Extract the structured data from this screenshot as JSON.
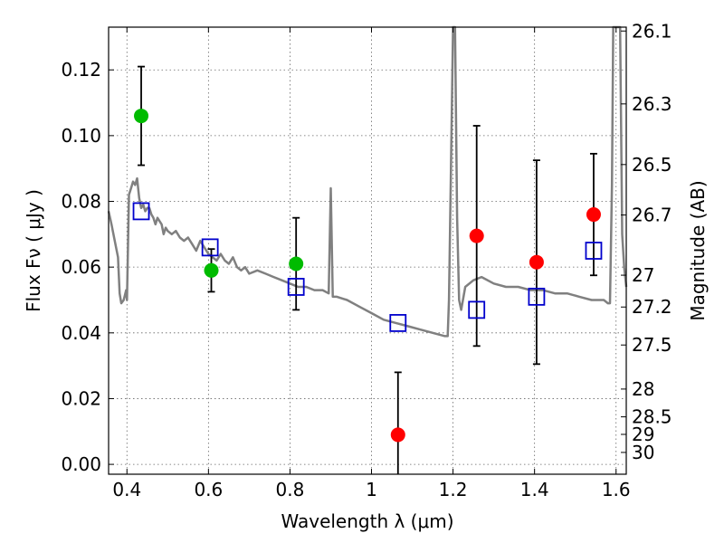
{
  "chart_data": {
    "type": "scatter",
    "xlabel": "Wavelength  λ (μm)",
    "ylabel": "Flux  Fν  ( μJy )",
    "y2label": "Magnitude (AB)",
    "xlim": [
      0.355,
      1.625
    ],
    "ylim": [
      -0.003,
      0.133
    ],
    "grid": true,
    "x_ticks": [
      0.4,
      0.6,
      0.8,
      1.0,
      1.2,
      1.4,
      1.6
    ],
    "x_tick_labels": [
      "0.4",
      "0.6",
      "0.8",
      "1",
      "1.2",
      "1.4",
      "1.6"
    ],
    "y_ticks": [
      0.0,
      0.02,
      0.04,
      0.06,
      0.08,
      0.1,
      0.12
    ],
    "y_tick_labels": [
      "0.00",
      "0.02",
      "0.04",
      "0.06",
      "0.08",
      "0.10",
      "0.12"
    ],
    "y2_ticks": [
      {
        "label": "26.1",
        "mag": 26.1
      },
      {
        "label": "26.3",
        "mag": 26.3
      },
      {
        "label": "26.5",
        "mag": 26.5
      },
      {
        "label": "26.7",
        "mag": 26.7
      },
      {
        "label": "27",
        "mag": 27.0
      },
      {
        "label": "27.2",
        "mag": 27.2
      },
      {
        "label": "27.5",
        "mag": 27.5
      },
      {
        "label": "28",
        "mag": 28.0
      },
      {
        "label": "28.5",
        "mag": 28.5
      },
      {
        "label": "29",
        "mag": 29.0
      },
      {
        "label": "30",
        "mag": 30.0
      }
    ],
    "colors": {
      "spectrum": "#808080",
      "green_points": "#00bb00",
      "red_points": "#ff0000",
      "model_squares": "#0000cc",
      "errorbars": "#000000"
    },
    "spectrum": {
      "x": [
        0.355,
        0.362,
        0.37,
        0.378,
        0.382,
        0.386,
        0.392,
        0.398,
        0.4,
        0.405,
        0.41,
        0.415,
        0.42,
        0.425,
        0.43,
        0.435,
        0.44,
        0.445,
        0.45,
        0.455,
        0.46,
        0.465,
        0.47,
        0.475,
        0.48,
        0.485,
        0.49,
        0.495,
        0.5,
        0.51,
        0.52,
        0.53,
        0.54,
        0.55,
        0.56,
        0.57,
        0.58,
        0.59,
        0.6,
        0.61,
        0.62,
        0.63,
        0.64,
        0.65,
        0.66,
        0.67,
        0.68,
        0.69,
        0.7,
        0.72,
        0.74,
        0.76,
        0.78,
        0.8,
        0.82,
        0.84,
        0.86,
        0.88,
        0.895,
        0.9,
        0.905,
        0.915,
        0.94,
        0.97,
        1.0,
        1.03,
        1.06,
        1.09,
        1.12,
        1.15,
        1.18,
        1.187,
        1.19,
        1.195,
        1.2,
        1.205,
        1.21,
        1.215,
        1.22,
        1.23,
        1.25,
        1.27,
        1.3,
        1.33,
        1.36,
        1.39,
        1.42,
        1.45,
        1.48,
        1.51,
        1.54,
        1.57,
        1.58,
        1.585,
        1.59,
        1.593,
        1.598,
        1.602,
        1.61,
        1.615,
        1.62,
        1.625
      ],
      "y": [
        0.077,
        0.073,
        0.068,
        0.063,
        0.052,
        0.049,
        0.05,
        0.053,
        0.05,
        0.082,
        0.084,
        0.086,
        0.085,
        0.087,
        0.081,
        0.078,
        0.079,
        0.077,
        0.078,
        0.078,
        0.076,
        0.075,
        0.073,
        0.075,
        0.074,
        0.073,
        0.07,
        0.072,
        0.071,
        0.07,
        0.071,
        0.069,
        0.068,
        0.069,
        0.067,
        0.065,
        0.068,
        0.066,
        0.064,
        0.063,
        0.062,
        0.064,
        0.062,
        0.061,
        0.063,
        0.06,
        0.059,
        0.06,
        0.058,
        0.059,
        0.058,
        0.057,
        0.056,
        0.055,
        0.054,
        0.054,
        0.053,
        0.053,
        0.052,
        0.084,
        0.051,
        0.051,
        0.05,
        0.048,
        0.046,
        0.044,
        0.043,
        0.042,
        0.041,
        0.04,
        0.039,
        0.039,
        0.05,
        0.09,
        0.133,
        0.133,
        0.075,
        0.05,
        0.047,
        0.054,
        0.056,
        0.057,
        0.055,
        0.054,
        0.054,
        0.053,
        0.053,
        0.052,
        0.052,
        0.051,
        0.05,
        0.05,
        0.049,
        0.049,
        0.085,
        0.133,
        0.133,
        0.133,
        0.133,
        0.07,
        0.06,
        0.054
      ]
    },
    "observed_points": [
      {
        "x": 0.435,
        "y": 0.106,
        "err_low": 0.015,
        "err_high": 0.015,
        "color": "green"
      },
      {
        "x": 0.607,
        "y": 0.059,
        "err_low": 0.0065,
        "err_high": 0.0065,
        "color": "green"
      },
      {
        "x": 0.815,
        "y": 0.061,
        "err_low": 0.014,
        "err_high": 0.014,
        "color": "green"
      },
      {
        "x": 1.065,
        "y": 0.009,
        "err_low": 0.019,
        "err_high": 0.019,
        "color": "red"
      },
      {
        "x": 1.258,
        "y": 0.0695,
        "err_low": 0.0335,
        "err_high": 0.0335,
        "color": "red"
      },
      {
        "x": 1.405,
        "y": 0.0615,
        "err_low": 0.031,
        "err_high": 0.031,
        "color": "red"
      },
      {
        "x": 1.545,
        "y": 0.076,
        "err_low": 0.0185,
        "err_high": 0.0185,
        "color": "red"
      }
    ],
    "model_points": [
      {
        "x": 0.435,
        "y": 0.077
      },
      {
        "x": 0.604,
        "y": 0.066
      },
      {
        "x": 0.815,
        "y": 0.054
      },
      {
        "x": 1.065,
        "y": 0.043
      },
      {
        "x": 1.258,
        "y": 0.047
      },
      {
        "x": 1.405,
        "y": 0.051
      },
      {
        "x": 1.545,
        "y": 0.065
      }
    ]
  }
}
